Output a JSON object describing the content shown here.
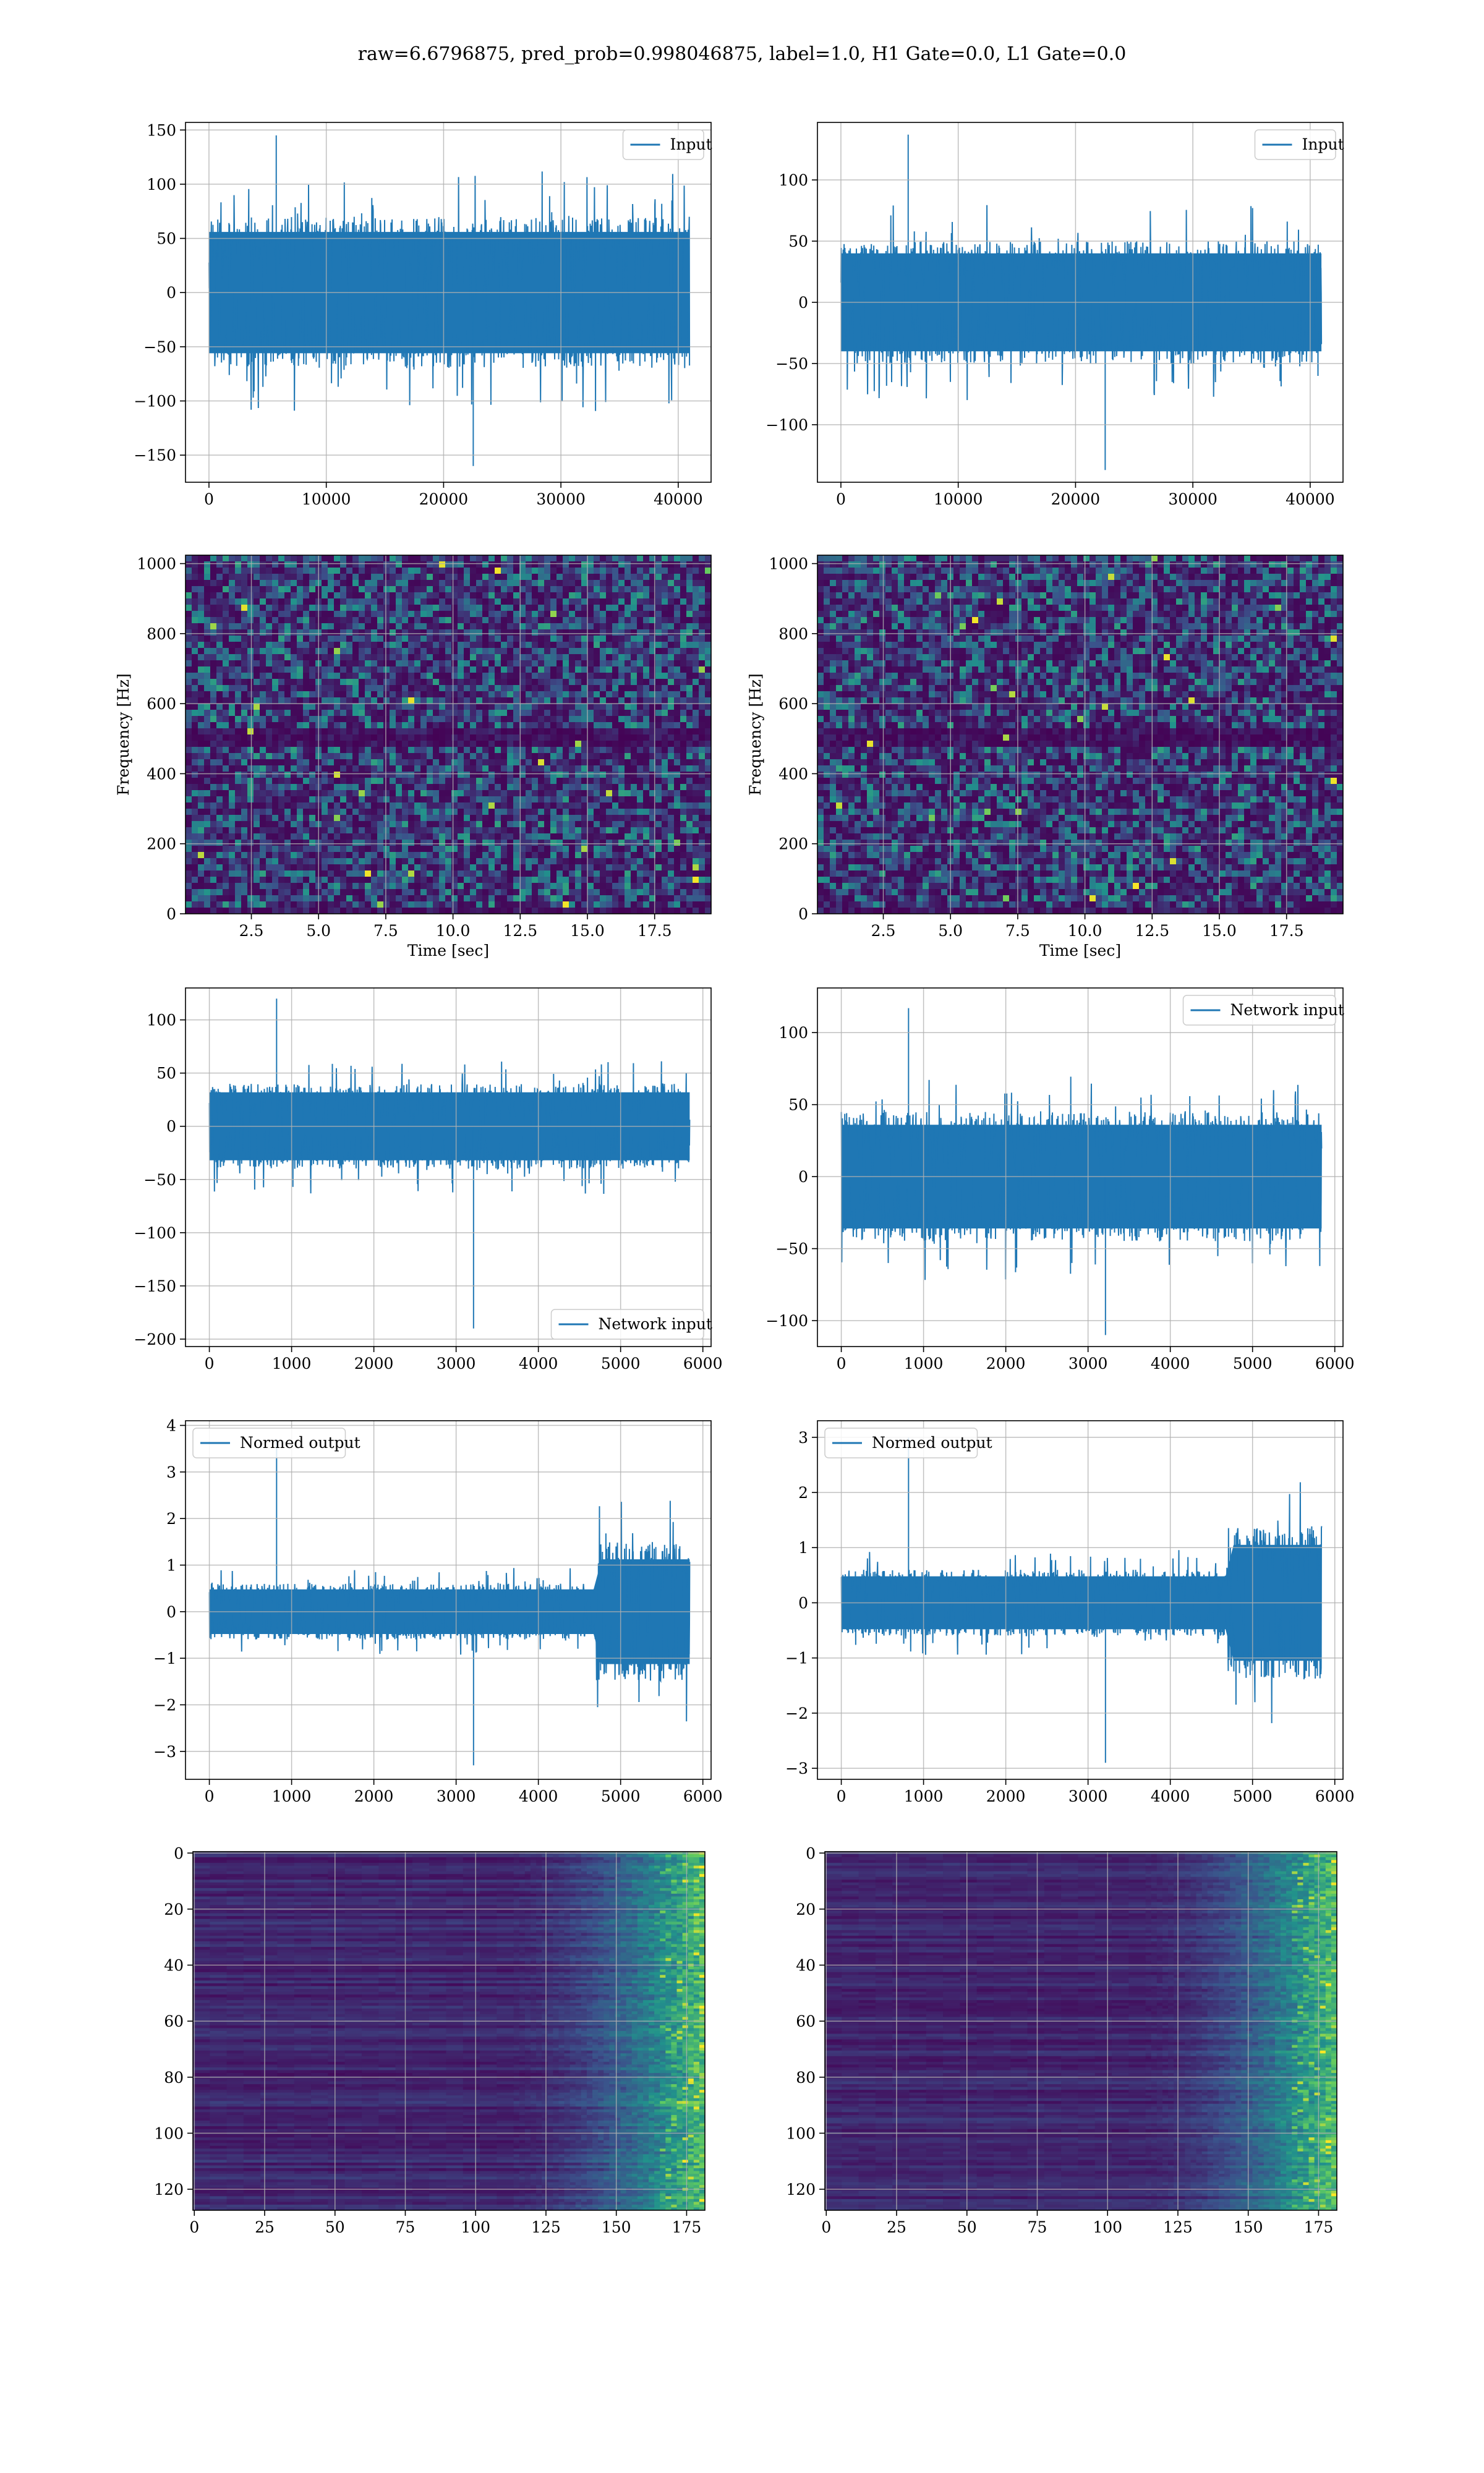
{
  "suptitle": "raw=6.6796875, pred_prob=0.998046875, label=1.0, H1 Gate=0.0, L1 Gate=0.0",
  "colors": {
    "line": "#1f77b4",
    "grid": "#b0b0b0",
    "heat_low": "#440154",
    "heat_mid": "#21918c",
    "heat_high": "#fde725"
  },
  "chart_data": [
    {
      "type": "line",
      "row": 1,
      "col": 1,
      "xlim": [
        -2000,
        42800
      ],
      "ylim": [
        -175,
        157
      ],
      "xticks": [
        0,
        10000,
        20000,
        30000,
        40000
      ],
      "xtick_labels": [
        "0",
        "10000",
        "20000",
        "30000",
        "40000"
      ],
      "yticks": [
        -150,
        -100,
        -50,
        0,
        50,
        100,
        150
      ],
      "ytick_labels": [
        "−150",
        "−100",
        "−50",
        "0",
        "50",
        "100",
        "150"
      ],
      "series": [
        {
          "name": "Input",
          "x_range": [
            0,
            40960
          ],
          "band": 70,
          "peak": 145,
          "trough": -160
        }
      ],
      "legend": "top-right",
      "grid": true
    },
    {
      "type": "line",
      "row": 1,
      "col": 2,
      "xlim": [
        -2000,
        42800
      ],
      "ylim": [
        -147,
        147
      ],
      "xticks": [
        0,
        10000,
        20000,
        30000,
        40000
      ],
      "xtick_labels": [
        "0",
        "10000",
        "20000",
        "30000",
        "40000"
      ],
      "yticks": [
        -100,
        -50,
        0,
        50,
        100
      ],
      "ytick_labels": [
        "−100",
        "−50",
        "0",
        "50",
        "100"
      ],
      "series": [
        {
          "name": "Input",
          "x_range": [
            0,
            40960
          ],
          "band": 50,
          "peak": 137,
          "trough": -137
        }
      ],
      "legend": "top-right",
      "grid": true
    },
    {
      "type": "heatmap",
      "row": 2,
      "col": 1,
      "xlim": [
        0.05,
        19.6
      ],
      "ylim": [
        0,
        1024
      ],
      "xticks": [
        2.5,
        5,
        7.5,
        10,
        12.5,
        15,
        17.5
      ],
      "xtick_labels": [
        "2.5",
        "5.0",
        "7.5",
        "10.0",
        "12.5",
        "15.0",
        "17.5"
      ],
      "yticks": [
        0,
        200,
        400,
        600,
        800,
        1000
      ],
      "ytick_labels": [
        "0",
        "200",
        "400",
        "600",
        "800",
        "1000"
      ],
      "xlabel": "Time [sec]",
      "ylabel": "Frequency [Hz]",
      "grid": true
    },
    {
      "type": "heatmap",
      "row": 2,
      "col": 2,
      "xlim": [
        0.05,
        19.6
      ],
      "ylim": [
        0,
        1024
      ],
      "xticks": [
        2.5,
        5,
        7.5,
        10,
        12.5,
        15,
        17.5
      ],
      "xtick_labels": [
        "2.5",
        "5.0",
        "7.5",
        "10.0",
        "12.5",
        "15.0",
        "17.5"
      ],
      "yticks": [
        0,
        200,
        400,
        600,
        800,
        1000
      ],
      "ytick_labels": [
        "0",
        "200",
        "400",
        "600",
        "800",
        "1000"
      ],
      "xlabel": "Time [sec]",
      "ylabel": "Frequency [Hz]",
      "grid": true
    },
    {
      "type": "line",
      "row": 3,
      "col": 1,
      "xlim": [
        -290,
        6100
      ],
      "ylim": [
        -207,
        130
      ],
      "xticks": [
        0,
        1000,
        2000,
        3000,
        4000,
        5000,
        6000
      ],
      "xtick_labels": [
        "0",
        "1000",
        "2000",
        "3000",
        "4000",
        "5000",
        "6000"
      ],
      "yticks": [
        -200,
        -150,
        -100,
        -50,
        0,
        50,
        100
      ],
      "ytick_labels": [
        "−200",
        "−150",
        "−100",
        "−50",
        "0",
        "50",
        "100"
      ],
      "series": [
        {
          "name": "Network input",
          "x_range": [
            0,
            5840
          ],
          "band": 40,
          "peak": 120,
          "trough": -190
        }
      ],
      "legend": "bottom-right",
      "grid": true
    },
    {
      "type": "line",
      "row": 3,
      "col": 2,
      "xlim": [
        -290,
        6100
      ],
      "ylim": [
        -118,
        131
      ],
      "xticks": [
        0,
        1000,
        2000,
        3000,
        4000,
        5000,
        6000
      ],
      "xtick_labels": [
        "0",
        "1000",
        "2000",
        "3000",
        "4000",
        "5000",
        "6000"
      ],
      "yticks": [
        -100,
        -50,
        0,
        50,
        100
      ],
      "ytick_labels": [
        "−100",
        "−50",
        "0",
        "50",
        "100"
      ],
      "series": [
        {
          "name": "Network input",
          "x_range": [
            0,
            5840
          ],
          "band": 45,
          "peak": 117,
          "trough": -110
        }
      ],
      "legend": "top-right",
      "grid": true
    },
    {
      "type": "line",
      "row": 4,
      "col": 1,
      "xlim": [
        -290,
        6100
      ],
      "ylim": [
        -3.6,
        4.1
      ],
      "xticks": [
        0,
        1000,
        2000,
        3000,
        4000,
        5000,
        6000
      ],
      "xtick_labels": [
        "0",
        "1000",
        "2000",
        "3000",
        "4000",
        "5000",
        "6000"
      ],
      "yticks": [
        -3,
        -2,
        -1,
        0,
        1,
        2,
        3,
        4
      ],
      "ytick_labels": [
        "−3",
        "−2",
        "−1",
        "0",
        "1",
        "2",
        "3",
        "4"
      ],
      "series": [
        {
          "name": "Normed output",
          "x_range": [
            0,
            5840
          ],
          "band": 0.6,
          "burst_start": 4700,
          "burst_band": 1.5,
          "peak": 3.7,
          "trough": -3.3
        }
      ],
      "legend": "top-left",
      "grid": true
    },
    {
      "type": "line",
      "row": 4,
      "col": 2,
      "xlim": [
        -290,
        6100
      ],
      "ylim": [
        -3.2,
        3.3
      ],
      "xticks": [
        0,
        1000,
        2000,
        3000,
        4000,
        5000,
        6000
      ],
      "xtick_labels": [
        "0",
        "1000",
        "2000",
        "3000",
        "4000",
        "5000",
        "6000"
      ],
      "yticks": [
        -3,
        -2,
        -1,
        0,
        1,
        2,
        3
      ],
      "ytick_labels": [
        "−3",
        "−2",
        "−1",
        "0",
        "1",
        "2",
        "3"
      ],
      "series": [
        {
          "name": "Normed output",
          "x_range": [
            0,
            5840
          ],
          "band": 0.6,
          "burst_start": 4700,
          "burst_band": 1.4,
          "peak": 3.0,
          "trough": -2.9
        }
      ],
      "legend": "top-left",
      "grid": true
    },
    {
      "type": "heatmap",
      "row": 5,
      "col": 1,
      "xlim": [
        -0.5,
        181.5
      ],
      "ylim": [
        127.5,
        -0.5
      ],
      "xticks": [
        0,
        25,
        50,
        75,
        100,
        125,
        150,
        175
      ],
      "xtick_labels": [
        "0",
        "25",
        "50",
        "75",
        "100",
        "125",
        "150",
        "175"
      ],
      "yticks": [
        0,
        20,
        40,
        60,
        80,
        100,
        120
      ],
      "ytick_labels": [
        "0",
        "20",
        "40",
        "60",
        "80",
        "100",
        "120"
      ],
      "grid": true
    },
    {
      "type": "heatmap",
      "row": 5,
      "col": 2,
      "xlim": [
        -0.5,
        181.5
      ],
      "ylim": [
        127.5,
        -0.5
      ],
      "xticks": [
        0,
        25,
        50,
        75,
        100,
        125,
        150,
        175
      ],
      "xtick_labels": [
        "0",
        "25",
        "50",
        "75",
        "100",
        "125",
        "150",
        "175"
      ],
      "yticks": [
        0,
        20,
        40,
        60,
        80,
        100,
        120
      ],
      "ytick_labels": [
        "0",
        "20",
        "40",
        "60",
        "80",
        "100",
        "120"
      ],
      "grid": true
    }
  ]
}
